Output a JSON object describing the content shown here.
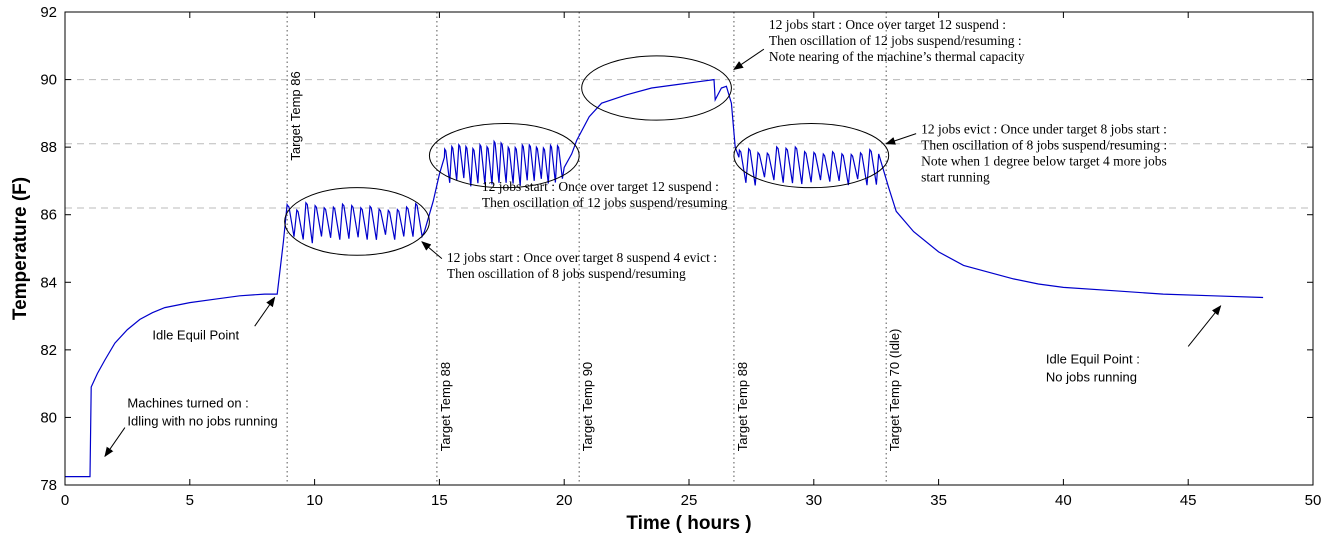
{
  "chart_data": {
    "type": "line",
    "title": "",
    "xlabel": "Time ( hours )",
    "ylabel": "Temperature (F)",
    "xlim": [
      0,
      50
    ],
    "ylim": [
      78,
      92
    ],
    "x_ticks": [
      0,
      5,
      10,
      15,
      20,
      25,
      30,
      35,
      40,
      45,
      50
    ],
    "y_ticks": [
      78,
      80,
      82,
      84,
      86,
      88,
      90,
      92
    ],
    "line_color": "#0000cc",
    "horizontal_gridlines": [
      86.2,
      88.1,
      90
    ],
    "series": [
      {
        "segments": [
          {
            "kind": "flat",
            "x0": 0,
            "x1": 1.0,
            "y": 78.25
          },
          {
            "kind": "points",
            "points": [
              [
                1.0,
                78.25
              ],
              [
                1.05,
                80.9
              ],
              [
                1.3,
                81.3
              ],
              [
                1.6,
                81.7
              ],
              [
                2.0,
                82.2
              ],
              [
                2.5,
                82.6
              ],
              [
                3.0,
                82.9
              ],
              [
                3.5,
                83.1
              ],
              [
                4.0,
                83.25
              ],
              [
                5.0,
                83.4
              ],
              [
                6.0,
                83.5
              ],
              [
                7.0,
                83.6
              ],
              [
                8.0,
                83.65
              ],
              [
                8.5,
                83.65
              ]
            ]
          },
          {
            "kind": "points",
            "points": [
              [
                8.5,
                83.65
              ],
              [
                8.75,
                85.2
              ],
              [
                8.9,
                86.3
              ]
            ]
          },
          {
            "kind": "osc",
            "x0": 8.9,
            "x1": 14.4,
            "cycles": 15,
            "hi": 86.25,
            "lo": 85.3
          },
          {
            "kind": "points",
            "points": [
              [
                14.4,
                85.5
              ],
              [
                14.75,
                86.4
              ],
              [
                15.0,
                87.2
              ],
              [
                15.2,
                87.7
              ]
            ]
          },
          {
            "kind": "osc",
            "x0": 15.2,
            "x1": 20.0,
            "cycles": 17,
            "hi": 88.05,
            "lo": 86.95
          },
          {
            "kind": "points",
            "points": [
              [
                20.0,
                87.4
              ],
              [
                20.3,
                87.8
              ],
              [
                20.5,
                88.2
              ],
              [
                21.0,
                88.9
              ],
              [
                21.5,
                89.3
              ],
              [
                22.5,
                89.55
              ],
              [
                23.5,
                89.75
              ],
              [
                24.5,
                89.85
              ],
              [
                25.5,
                89.95
              ],
              [
                26.0,
                90.0
              ],
              [
                26.05,
                89.4
              ],
              [
                26.3,
                89.75
              ],
              [
                26.5,
                89.8
              ],
              [
                26.7,
                89.3
              ],
              [
                26.85,
                88.0
              ],
              [
                27.0,
                87.7
              ]
            ]
          },
          {
            "kind": "osc",
            "x0": 27.0,
            "x1": 32.6,
            "cycles": 15,
            "hi": 87.9,
            "lo": 87.0
          },
          {
            "kind": "points",
            "points": [
              [
                32.6,
                87.8
              ],
              [
                33.0,
                86.8
              ],
              [
                33.3,
                86.1
              ],
              [
                34.0,
                85.5
              ],
              [
                35.0,
                84.9
              ],
              [
                36.0,
                84.5
              ],
              [
                37.0,
                84.3
              ],
              [
                38.0,
                84.1
              ],
              [
                39.0,
                83.95
              ],
              [
                40.0,
                83.85
              ],
              [
                42.0,
                83.75
              ],
              [
                44.0,
                83.65
              ],
              [
                46.0,
                83.6
              ],
              [
                48.0,
                83.55
              ]
            ]
          }
        ]
      }
    ],
    "target_markers": [
      {
        "x": 8.9,
        "label": "Target Temp 86",
        "label_y": 87.6
      },
      {
        "x": 14.9,
        "label": "Target Temp 88",
        "label_y": 79.0
      },
      {
        "x": 20.6,
        "label": "Target Temp 90",
        "label_y": 79.0
      },
      {
        "x": 26.8,
        "label": "Target Temp 88",
        "label_y": 79.0
      },
      {
        "x": 32.9,
        "label": "Target Temp 70 (Idle)",
        "label_y": 79.0
      }
    ],
    "ellipses": [
      {
        "cx": 11.7,
        "cy": 85.8,
        "rx": 2.9,
        "ry": 1.0
      },
      {
        "cx": 17.6,
        "cy": 87.75,
        "rx": 3.0,
        "ry": 0.95
      },
      {
        "cx": 23.7,
        "cy": 89.75,
        "rx": 3.0,
        "ry": 0.95
      },
      {
        "cx": 29.9,
        "cy": 87.75,
        "rx": 3.1,
        "ry": 0.95
      }
    ],
    "annotations": [
      {
        "style": "sans",
        "x": 2.5,
        "y": 80.3,
        "lines": [
          "Machines turned on :",
          "Idling with no jobs running"
        ],
        "arrow": {
          "from": [
            2.4,
            79.7
          ],
          "to": [
            1.6,
            78.85
          ]
        }
      },
      {
        "style": "sans",
        "x": 3.5,
        "y": 82.3,
        "lines": [
          "Idle Equil Point"
        ],
        "arrow": {
          "from": [
            7.6,
            82.7
          ],
          "to": [
            8.4,
            83.55
          ]
        }
      },
      {
        "style": "serif",
        "x": 15.3,
        "y": 84.6,
        "lines": [
          "12 jobs start : Once over target 8 suspend 4 evict :",
          "Then oscillation of 8 jobs suspend/resuming"
        ],
        "arrow": {
          "from": [
            15.1,
            84.7
          ],
          "to": [
            14.3,
            85.2
          ]
        }
      },
      {
        "style": "serif",
        "x": 16.7,
        "y": 86.7,
        "lines": [
          "12 jobs start : Once over target 12 suspend :",
          "Then oscillation of 12 jobs suspend/resuming"
        ],
        "arrow": null
      },
      {
        "style": "serif",
        "x": 28.2,
        "y": 91.5,
        "lines": [
          "12 jobs start : Once over target 12 suspend :",
          "Then oscillation of 12 jobs suspend/resuming :",
          "Note nearing of the machine’s thermal capacity"
        ],
        "arrow": {
          "from": [
            28.0,
            90.9
          ],
          "to": [
            26.8,
            90.3
          ]
        }
      },
      {
        "style": "serif",
        "x": 34.3,
        "y": 88.4,
        "lines": [
          "12 jobs evict : Once under target 8 jobs start :",
          "Then oscillation of 8 jobs suspend/resuming :",
          "Note when 1 degree below target 4 more jobs",
          "start running"
        ],
        "arrow": {
          "from": [
            34.1,
            88.4
          ],
          "to": [
            32.9,
            88.1
          ]
        }
      },
      {
        "style": "sans",
        "x": 39.3,
        "y": 81.6,
        "lines": [
          "Idle Equil Point :",
          "No jobs running"
        ],
        "arrow": {
          "from": [
            45.0,
            82.1
          ],
          "to": [
            46.3,
            83.3
          ]
        }
      }
    ]
  }
}
